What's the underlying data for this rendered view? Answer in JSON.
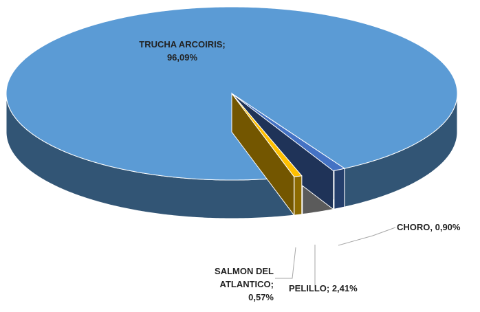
{
  "chart_data": {
    "type": "pie",
    "series": [
      {
        "values": [
          0.9,
          2.41,
          0.57,
          96.09
        ],
        "value_labels": [
          "CHORO, 0,90%",
          "PELILLO; 2,41%",
          "SALMON DEL ATLANTICO; 0,57%",
          "TRUCHA ARCOIRIS; 96,09%"
        ],
        "colors": [
          "#4472c4",
          "#a5a5a5",
          "#ffc000",
          "#5b9bd5"
        ]
      }
    ]
  }
}
